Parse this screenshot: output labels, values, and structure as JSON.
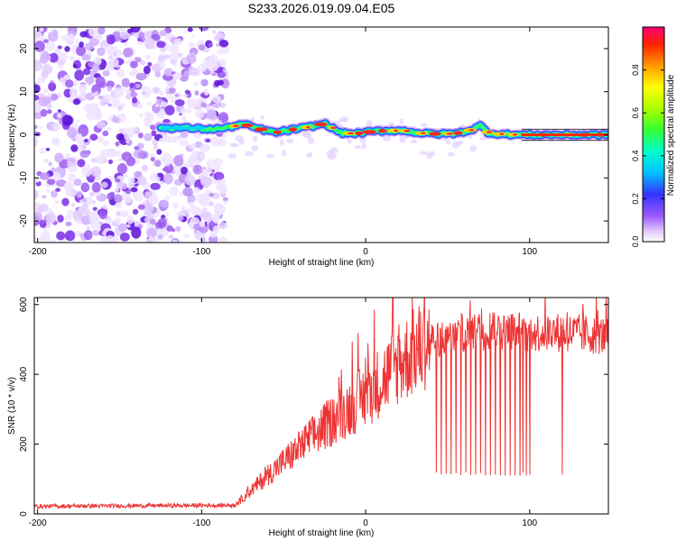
{
  "title": "S233.2026.019.09.04.E05",
  "chart_data": [
    {
      "type": "heatmap",
      "xlabel": "Height of straight line (km)",
      "ylabel": "Frequency (Hz)",
      "xlim": [
        -202,
        148
      ],
      "ylim": [
        -25,
        25
      ],
      "xticks": [
        -200,
        -100,
        0,
        100
      ],
      "yticks": [
        -20,
        -10,
        0,
        10,
        20
      ],
      "colorbar": {
        "label": "Normalized spectral amplitude",
        "range": [
          0,
          1
        ],
        "ticks": [
          "0.0",
          "0.2",
          "0.4",
          "0.6",
          "0.8"
        ]
      },
      "peak_frequency_track": {
        "x": [
          -125,
          -110,
          -95,
          -85,
          -75,
          -65,
          -55,
          -45,
          -35,
          -25,
          -15,
          -5,
          5,
          15,
          25,
          35,
          45,
          55,
          65,
          70,
          75,
          85,
          95,
          105,
          115,
          125,
          135,
          148
        ],
        "y": [
          1.6,
          1.6,
          1.3,
          1.6,
          2.5,
          1.4,
          0.5,
          1.2,
          1.8,
          2.6,
          0.4,
          0.3,
          0.8,
          1.0,
          0.9,
          0.3,
          0.2,
          0.3,
          1.2,
          2.1,
          0.4,
          0.1,
          0.0,
          0.0,
          0.0,
          0.0,
          0.0,
          0.0
        ]
      },
      "noise_region_x": [
        -202,
        -85
      ]
    },
    {
      "type": "line",
      "series": [
        {
          "name": "SNR",
          "color": "#ee3333"
        }
      ],
      "xlabel": "Height of straight line (km)",
      "ylabel": "SNR (10 * v/v)",
      "xlim": [
        -202,
        148
      ],
      "ylim": [
        0,
        620
      ],
      "xticks": [
        -200,
        -100,
        0,
        100
      ],
      "yticks": [
        0,
        200,
        400,
        600
      ],
      "trend": {
        "x": [
          -202,
          -80,
          -75,
          -60,
          -40,
          -20,
          0,
          20,
          40,
          60,
          80,
          100,
          120,
          148
        ],
        "y": [
          22,
          25,
          45,
          110,
          190,
          270,
          340,
          430,
          500,
          520,
          530,
          520,
          520,
          510
        ]
      },
      "dropouts": {
        "x": [
          43,
          46,
          49,
          52,
          55,
          58,
          61,
          64,
          67,
          70,
          73,
          76,
          79,
          82,
          85,
          88,
          91,
          94,
          96,
          98,
          100,
          120
        ],
        "y_min": 110
      }
    }
  ]
}
